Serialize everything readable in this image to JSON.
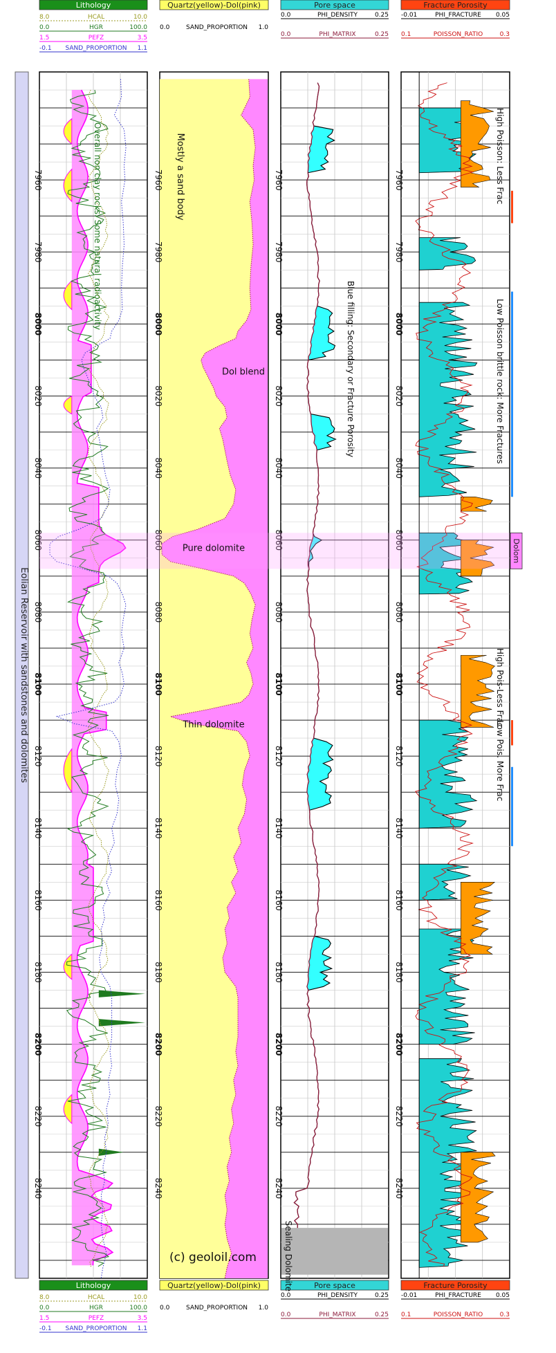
{
  "chart_data": {
    "type": "well-log",
    "depth_range": [
      7930,
      8265
    ],
    "depth_ticks": [
      7960,
      7980,
      8000,
      8020,
      8040,
      8060,
      8080,
      8100,
      8120,
      8140,
      8160,
      8180,
      8200,
      8220,
      8240
    ],
    "bold_depth_ticks": [
      8000,
      8100,
      8200
    ],
    "side_label": "Eolian Reservoir with sandstones and dolomites",
    "watermark": "(c) geoloil.com",
    "tracks": [
      {
        "id": "lithology",
        "title": "Lithology",
        "title_color": "#1a8f1a",
        "curves": [
          {
            "name": "HCAL",
            "min": "8.0",
            "max": "10.0",
            "color": "#9a9a20"
          },
          {
            "name": "HGR",
            "min": "0.0",
            "max": "100.0",
            "color": "#1f7a1f"
          },
          {
            "name": "PEFZ",
            "min": "1.5",
            "max": "3.5",
            "color": "#ff00ff"
          },
          {
            "name": "SAND_PROPORTION",
            "min": "-0.1",
            "max": "1.1",
            "color": "#3333cc"
          }
        ],
        "annotations": [
          "Overall non clay rocks. Some natural radioactivity"
        ]
      },
      {
        "id": "quartz",
        "title": "Quartz(yellow)-Dol(pink)",
        "title_color": "#ffff66",
        "curves": [
          {
            "name": "SAND_PROPORTION",
            "min": "0.0",
            "max": "1.0",
            "color": "#000000"
          }
        ],
        "annotations": [
          "Mostly a sand body",
          "Dol blend",
          "Pure dolomite",
          "Thin dolomite"
        ]
      },
      {
        "id": "pore",
        "title": "Pore space",
        "title_color": "#33d6d6",
        "curves": [
          {
            "name": "PHI_DENSITY",
            "min": "0.0",
            "max": "0.25",
            "color": "#000000"
          },
          {
            "name": "PHI_MATRIX",
            "min": "0.0",
            "max": "0.25",
            "color": "#8b1a3a"
          }
        ],
        "annotations": [
          "Blue filling: Secondary or Fracture Porosity",
          "Sealing Dolomite"
        ]
      },
      {
        "id": "fracture",
        "title": "Fracture Porosity",
        "title_color": "#ff4411",
        "curves": [
          {
            "name": "PHI_FRACTURE",
            "min": "-0.01",
            "max": "0.05",
            "color": "#000000"
          },
          {
            "name": "POISSON_RATIO",
            "min": "0.1",
            "max": "0.3",
            "color": "#cc1111"
          }
        ],
        "annotations": [
          "High Poisson: Less Frac",
          "Low Poisson brittle rock: More Fractures",
          "High Pois-Less Frac",
          "Low Pois. More Frac"
        ]
      }
    ],
    "zone_label": "Dolom",
    "zones": [
      {
        "top": 8058,
        "bottom": 8068
      }
    ],
    "sealing_zone": {
      "top": 8251,
      "bottom": 8264
    },
    "quartz_profile": [
      [
        7932,
        0.82
      ],
      [
        7937,
        0.83
      ],
      [
        7942,
        0.75
      ],
      [
        7946,
        0.86
      ],
      [
        7951,
        0.88
      ],
      [
        7956,
        0.86
      ],
      [
        7960,
        0.87
      ],
      [
        7966,
        0.83
      ],
      [
        7972,
        0.85
      ],
      [
        7978,
        0.86
      ],
      [
        7984,
        0.84
      ],
      [
        7990,
        0.83
      ],
      [
        7996,
        0.84
      ],
      [
        7999,
        0.8
      ],
      [
        8002,
        0.72
      ],
      [
        8004,
        0.7
      ],
      [
        8006,
        0.55
      ],
      [
        8008,
        0.42
      ],
      [
        8010,
        0.38
      ],
      [
        8012,
        0.4
      ],
      [
        8015,
        0.45
      ],
      [
        8018,
        0.5
      ],
      [
        8020,
        0.52
      ],
      [
        8023,
        0.6
      ],
      [
        8026,
        0.62
      ],
      [
        8029,
        0.55
      ],
      [
        8032,
        0.58
      ],
      [
        8035,
        0.6
      ],
      [
        8038,
        0.62
      ],
      [
        8042,
        0.65
      ],
      [
        8046,
        0.7
      ],
      [
        8050,
        0.68
      ],
      [
        8054,
        0.6
      ],
      [
        8057,
        0.35
      ],
      [
        8059,
        0.12
      ],
      [
        8061,
        0.02
      ],
      [
        8064,
        0.02
      ],
      [
        8066,
        0.1
      ],
      [
        8068,
        0.4
      ],
      [
        8070,
        0.68
      ],
      [
        8072,
        0.78
      ],
      [
        8075,
        0.84
      ],
      [
        8078,
        0.88
      ],
      [
        8082,
        0.85
      ],
      [
        8086,
        0.83
      ],
      [
        8090,
        0.86
      ],
      [
        8094,
        0.8
      ],
      [
        8097,
        0.84
      ],
      [
        8100,
        0.86
      ],
      [
        8103,
        0.82
      ],
      [
        8105,
        0.75
      ],
      [
        8107,
        0.45
      ],
      [
        8109,
        0.1
      ],
      [
        8111,
        0.3
      ],
      [
        8113,
        0.72
      ],
      [
        8116,
        0.8
      ],
      [
        8120,
        0.83
      ],
      [
        8124,
        0.78
      ],
      [
        8128,
        0.76
      ],
      [
        8132,
        0.8
      ],
      [
        8136,
        0.78
      ],
      [
        8140,
        0.72
      ],
      [
        8144,
        0.75
      ],
      [
        8148,
        0.68
      ],
      [
        8152,
        0.72
      ],
      [
        8155,
        0.66
      ],
      [
        8158,
        0.7
      ],
      [
        8162,
        0.62
      ],
      [
        8165,
        0.64
      ],
      [
        8168,
        0.6
      ],
      [
        8172,
        0.62
      ],
      [
        8176,
        0.58
      ],
      [
        8180,
        0.6
      ],
      [
        8184,
        0.7
      ],
      [
        8187,
        0.72
      ],
      [
        8190,
        0.72
      ],
      [
        8194,
        0.72
      ],
      [
        8198,
        0.72
      ],
      [
        8202,
        0.7
      ],
      [
        8206,
        0.72
      ],
      [
        8210,
        0.68
      ],
      [
        8214,
        0.7
      ],
      [
        8218,
        0.66
      ],
      [
        8222,
        0.68
      ],
      [
        8226,
        0.64
      ],
      [
        8230,
        0.66
      ],
      [
        8234,
        0.62
      ],
      [
        8238,
        0.64
      ],
      [
        8242,
        0.6
      ],
      [
        8246,
        0.62
      ],
      [
        8250,
        0.6
      ],
      [
        8254,
        0.62
      ],
      [
        8258,
        0.66
      ],
      [
        8262,
        0.62
      ],
      [
        8265,
        0.6
      ]
    ]
  }
}
